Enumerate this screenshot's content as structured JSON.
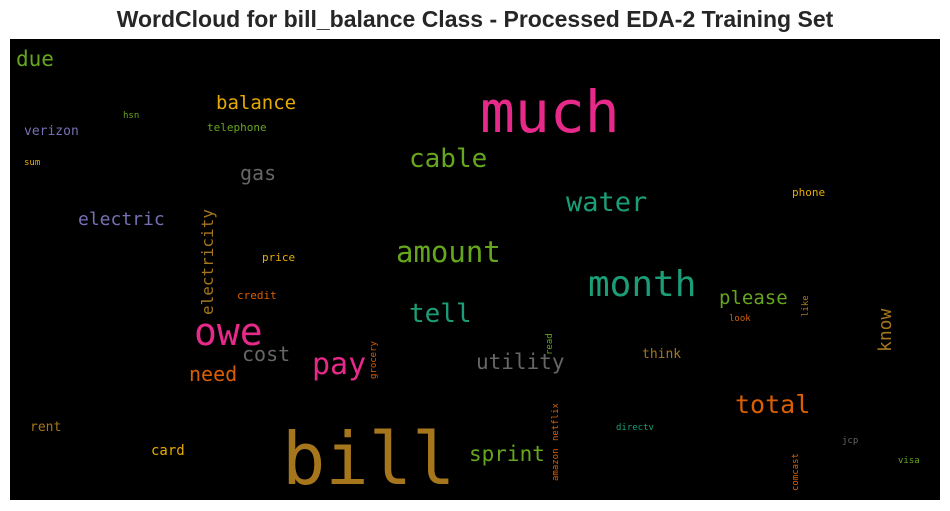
{
  "title": "WordCloud for bill_balance Class - Processed EDA-2 Training Set",
  "colors": {
    "pink": "#e7298a",
    "teal": "#1b9e77",
    "green": "#66a61e",
    "orange": "#d95f02",
    "gold": "#e6ab02",
    "purple": "#7570b3",
    "gray": "#666666",
    "brown": "#a6761d"
  },
  "words": {
    "bill": "bill",
    "much": "much",
    "owe": "owe",
    "month": "month",
    "amount": "amount",
    "pay": "pay",
    "cable": "cable",
    "water": "water",
    "tell": "tell",
    "total": "total",
    "utility": "utility",
    "cost": "cost",
    "sprint": "sprint",
    "need": "need",
    "electric": "electric",
    "balance": "balance",
    "gas": "gas",
    "due": "due",
    "please": "please",
    "know": "know",
    "electricity": "electricity",
    "verizon": "verizon",
    "rent": "rent",
    "card": "card",
    "think": "think",
    "phone": "phone",
    "price": "price",
    "credit": "credit",
    "telephone": "telephone",
    "hsn": "hsn",
    "sum": "sum",
    "look": "look",
    "like": "like",
    "grocery": "grocery",
    "read": "read",
    "netflix": "netflix",
    "amazon": "amazon",
    "directv": "directv",
    "jcp": "jcp",
    "comcast": "comcast",
    "visa": "visa"
  }
}
